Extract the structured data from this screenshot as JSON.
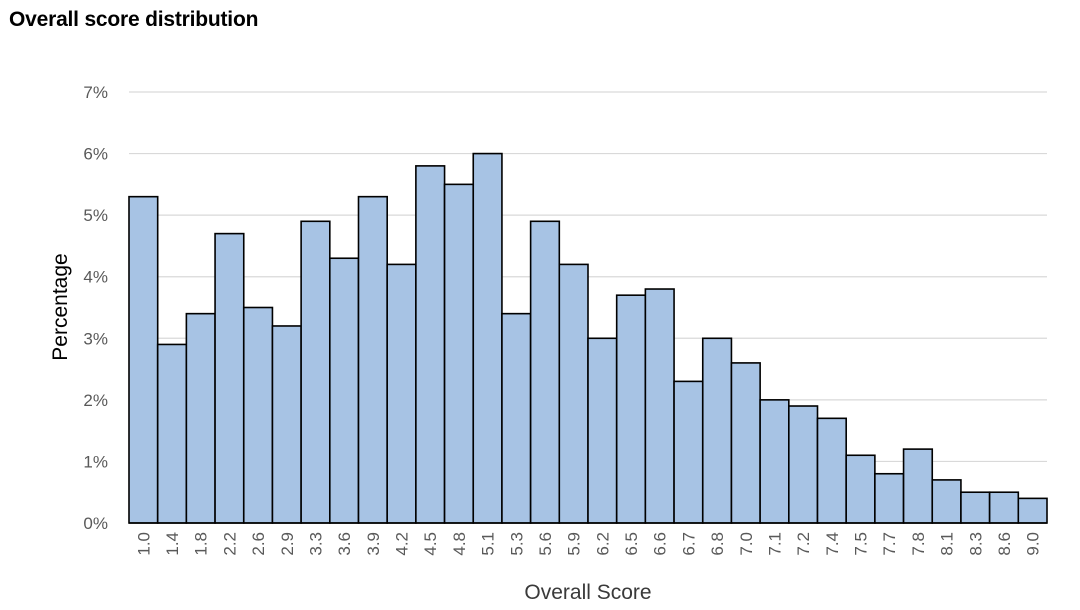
{
  "chart_data": {
    "type": "bar",
    "title": "Overall score distribution",
    "xlabel": "Overall Score",
    "ylabel": "Percentage",
    "ylim": [
      0,
      7
    ],
    "ytick_labels": [
      "0%",
      "1%",
      "2%",
      "3%",
      "4%",
      "5%",
      "6%",
      "7%"
    ],
    "grid": true,
    "legend": "none",
    "categories": [
      "1.0",
      "1.4",
      "1.8",
      "2.2",
      "2.6",
      "2.9",
      "3.3",
      "3.6",
      "3.9",
      "4.2",
      "4.5",
      "4.8",
      "5.1",
      "5.3",
      "5.6",
      "5.9",
      "6.2",
      "6.5",
      "6.6",
      "6.7",
      "6.8",
      "7.0",
      "7.1",
      "7.2",
      "7.4",
      "7.5",
      "7.7",
      "7.8",
      "8.1",
      "8.3",
      "8.6",
      "9.0"
    ],
    "values": [
      5.3,
      2.9,
      3.4,
      4.7,
      3.5,
      3.2,
      4.9,
      4.3,
      5.3,
      4.2,
      5.8,
      5.5,
      6.0,
      3.4,
      4.9,
      4.2,
      3.0,
      3.7,
      3.8,
      2.3,
      3.0,
      2.6,
      2.0,
      1.9,
      1.7,
      1.1,
      0.8,
      1.2,
      0.7,
      0.5,
      0.5,
      0.4
    ],
    "colors": {
      "bar_fill": "#a7c3e4",
      "bar_stroke": "#000000",
      "grid": "#d9d9d9"
    }
  }
}
